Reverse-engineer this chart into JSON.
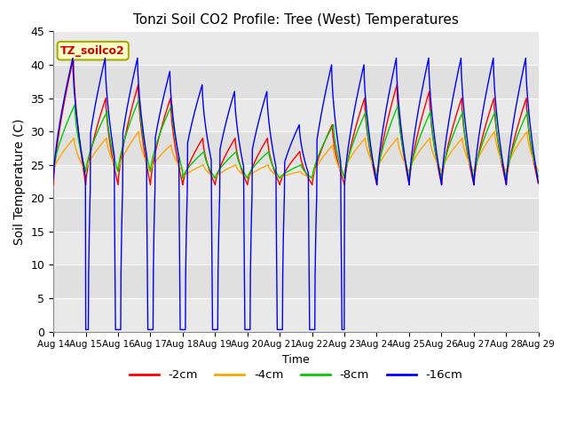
{
  "title": "Tonzi Soil CO2 Profile: Tree (West) Temperatures",
  "ylabel": "Soil Temperature (C)",
  "xlabel": "Time",
  "ylim": [
    0,
    45
  ],
  "annotation_label": "TZ_soilco2",
  "legend_labels": [
    "-2cm",
    "-4cm",
    "-8cm",
    "-16cm"
  ],
  "legend_colors": [
    "#ff0000",
    "#ffa500",
    "#00cc00",
    "#0000ff"
  ],
  "background_color": "#ffffff",
  "plot_bg_color": "#e0e0e0",
  "x_tick_labels": [
    "Aug 14",
    "Aug 15",
    "Aug 16",
    "Aug 17",
    "Aug 18",
    "Aug 19",
    "Aug 20",
    "Aug 21",
    "Aug 22",
    "Aug 23",
    "Aug 24",
    "Aug 25",
    "Aug 26",
    "Aug 27",
    "Aug 28",
    "Aug 29"
  ],
  "yticks": [
    0,
    5,
    10,
    15,
    20,
    25,
    30,
    35,
    40,
    45
  ],
  "grid_color": "#ffffff",
  "annotation_bg": "#ffffcc",
  "annotation_border": "#aaaa00",
  "n_days": 15,
  "n_per_day": 100
}
